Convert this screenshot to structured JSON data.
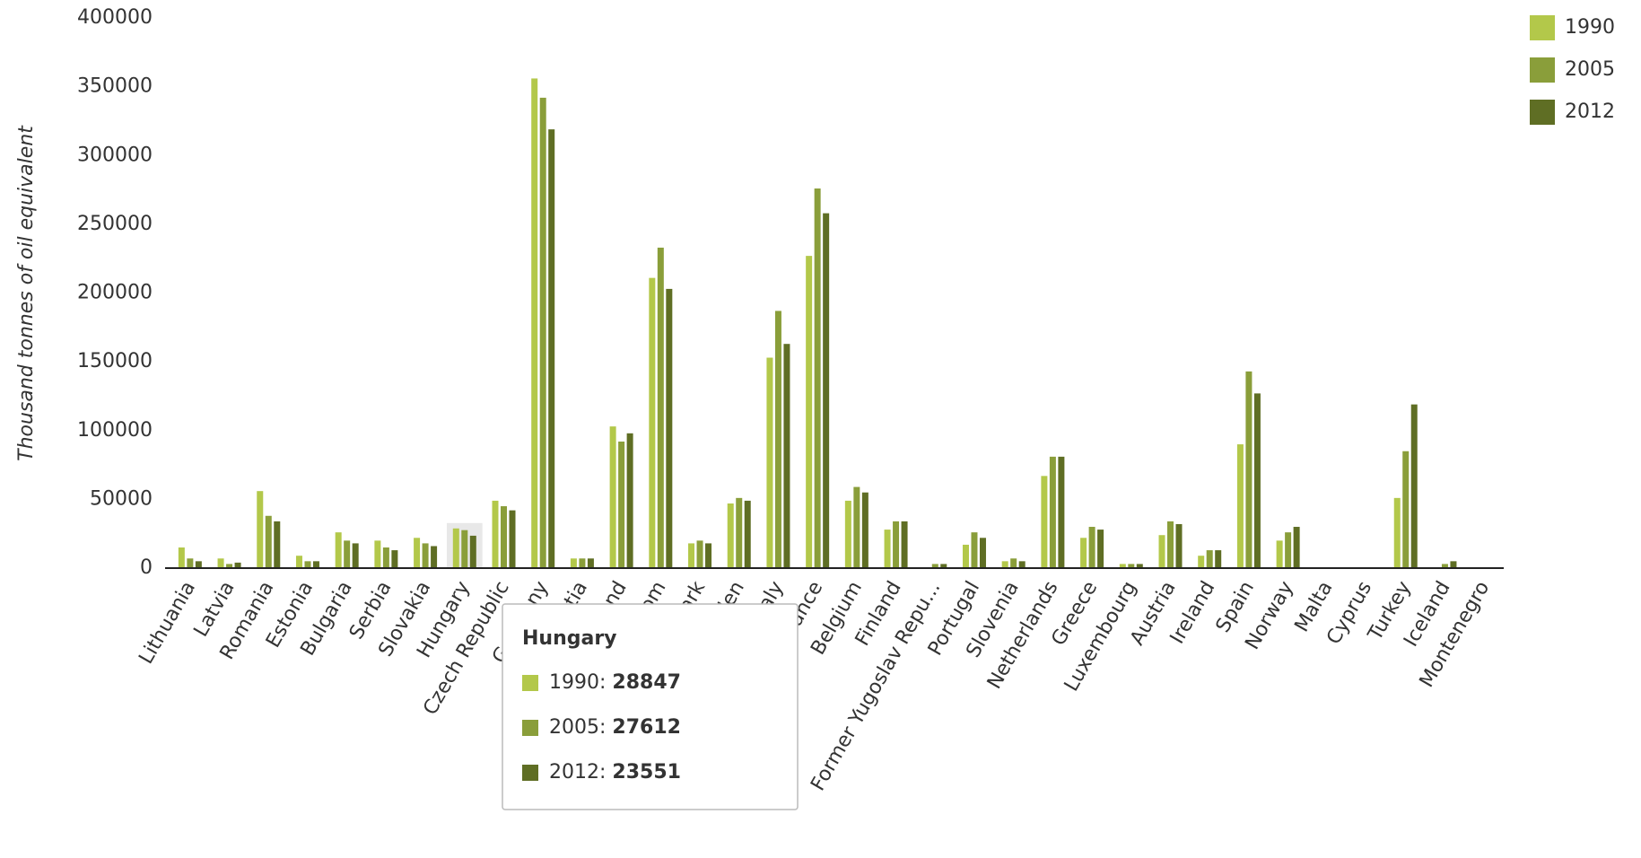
{
  "chart_data": {
    "type": "bar",
    "y_label": "Thousand tonnes of oil equivalent",
    "categories": [
      "Lithuania",
      "Latvia",
      "Romania",
      "Estonia",
      "Bulgaria",
      "Serbia",
      "Slovakia",
      "Hungary",
      "Czech Republic",
      "Germany",
      "Croatia",
      "Poland",
      "United Kingdom",
      "Denmark",
      "Sweden",
      "Italy",
      "France",
      "Belgium",
      "Finland",
      "Former Yugoslav Repu...",
      "Portugal",
      "Slovenia",
      "Netherlands",
      "Greece",
      "Luxembourg",
      "Austria",
      "Ireland",
      "Spain",
      "Norway",
      "Malta",
      "Cyprus",
      "Turkey",
      "Iceland",
      "Montenegro"
    ],
    "series": [
      {
        "name": "1990",
        "color": "#b3c84a",
        "values": [
          15000,
          7000,
          56000,
          9000,
          26000,
          20000,
          22000,
          28847,
          49000,
          356000,
          7000,
          103000,
          211000,
          18000,
          47000,
          153000,
          227000,
          49000,
          28000,
          0,
          17000,
          5000,
          67000,
          22000,
          3000,
          24000,
          9000,
          90000,
          20000,
          0,
          0,
          51000,
          0,
          0
        ]
      },
      {
        "name": "2005",
        "color": "#8a9e3a",
        "values": [
          7000,
          3000,
          38000,
          5000,
          20000,
          15000,
          18000,
          27612,
          45000,
          342000,
          7000,
          92000,
          233000,
          20000,
          51000,
          187000,
          276000,
          59000,
          34000,
          3000,
          26000,
          7000,
          81000,
          30000,
          3000,
          34000,
          13000,
          143000,
          26000,
          0,
          0,
          85000,
          3000,
          0
        ]
      },
      {
        "name": "2012",
        "color": "#5f6e24",
        "values": [
          5000,
          4000,
          34000,
          5000,
          18000,
          13000,
          16000,
          23551,
          42000,
          319000,
          7000,
          98000,
          203000,
          18000,
          49000,
          163000,
          258000,
          55000,
          34000,
          3000,
          22000,
          5000,
          81000,
          28000,
          3000,
          32000,
          13000,
          127000,
          30000,
          0,
          0,
          119000,
          5000,
          0
        ]
      }
    ],
    "ylim": [
      0,
      400000
    ],
    "yticks": [
      0,
      50000,
      100000,
      150000,
      200000,
      250000,
      300000,
      350000,
      400000
    ],
    "legend": "top-right",
    "tooltip_index": 7
  }
}
